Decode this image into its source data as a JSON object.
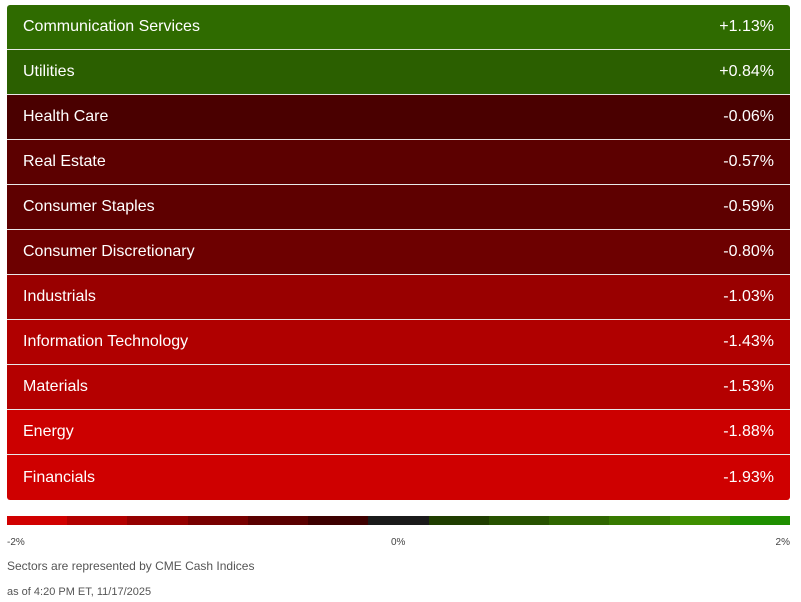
{
  "sectors": [
    {
      "name": "Communication Services",
      "change": "+1.13%",
      "color": "#2f6b00"
    },
    {
      "name": "Utilities",
      "change": "+0.84%",
      "color": "#2b5f00"
    },
    {
      "name": "Health Care",
      "change": "-0.06%",
      "color": "#4a0000"
    },
    {
      "name": "Real Estate",
      "change": "-0.57%",
      "color": "#5c0000"
    },
    {
      "name": "Consumer Staples",
      "change": "-0.59%",
      "color": "#5e0000"
    },
    {
      "name": "Consumer Discretionary",
      "change": "-0.80%",
      "color": "#6d0000"
    },
    {
      "name": "Industrials",
      "change": "-1.03%",
      "color": "#990000"
    },
    {
      "name": "Information Technology",
      "change": "-1.43%",
      "color": "#b00000"
    },
    {
      "name": "Materials",
      "change": "-1.53%",
      "color": "#b40000"
    },
    {
      "name": "Energy",
      "change": "-1.88%",
      "color": "#cc0000"
    },
    {
      "name": "Financials",
      "change": "-1.93%",
      "color": "#cf0000"
    }
  ],
  "scale": {
    "colors": [
      "#d10000",
      "#b30000",
      "#950000",
      "#780000",
      "#5a0000",
      "#3d0000",
      "#1a1a1a",
      "#1f3d00",
      "#275200",
      "#2f6600",
      "#377a00",
      "#3f8f00",
      "#1f8f00"
    ],
    "min_label": "-2%",
    "mid_label": "0%",
    "max_label": "2%"
  },
  "footer": {
    "note": "Sectors are represented by CME Cash Indices",
    "as_of": "as of 4:20 PM ET, 11/17/2025"
  }
}
